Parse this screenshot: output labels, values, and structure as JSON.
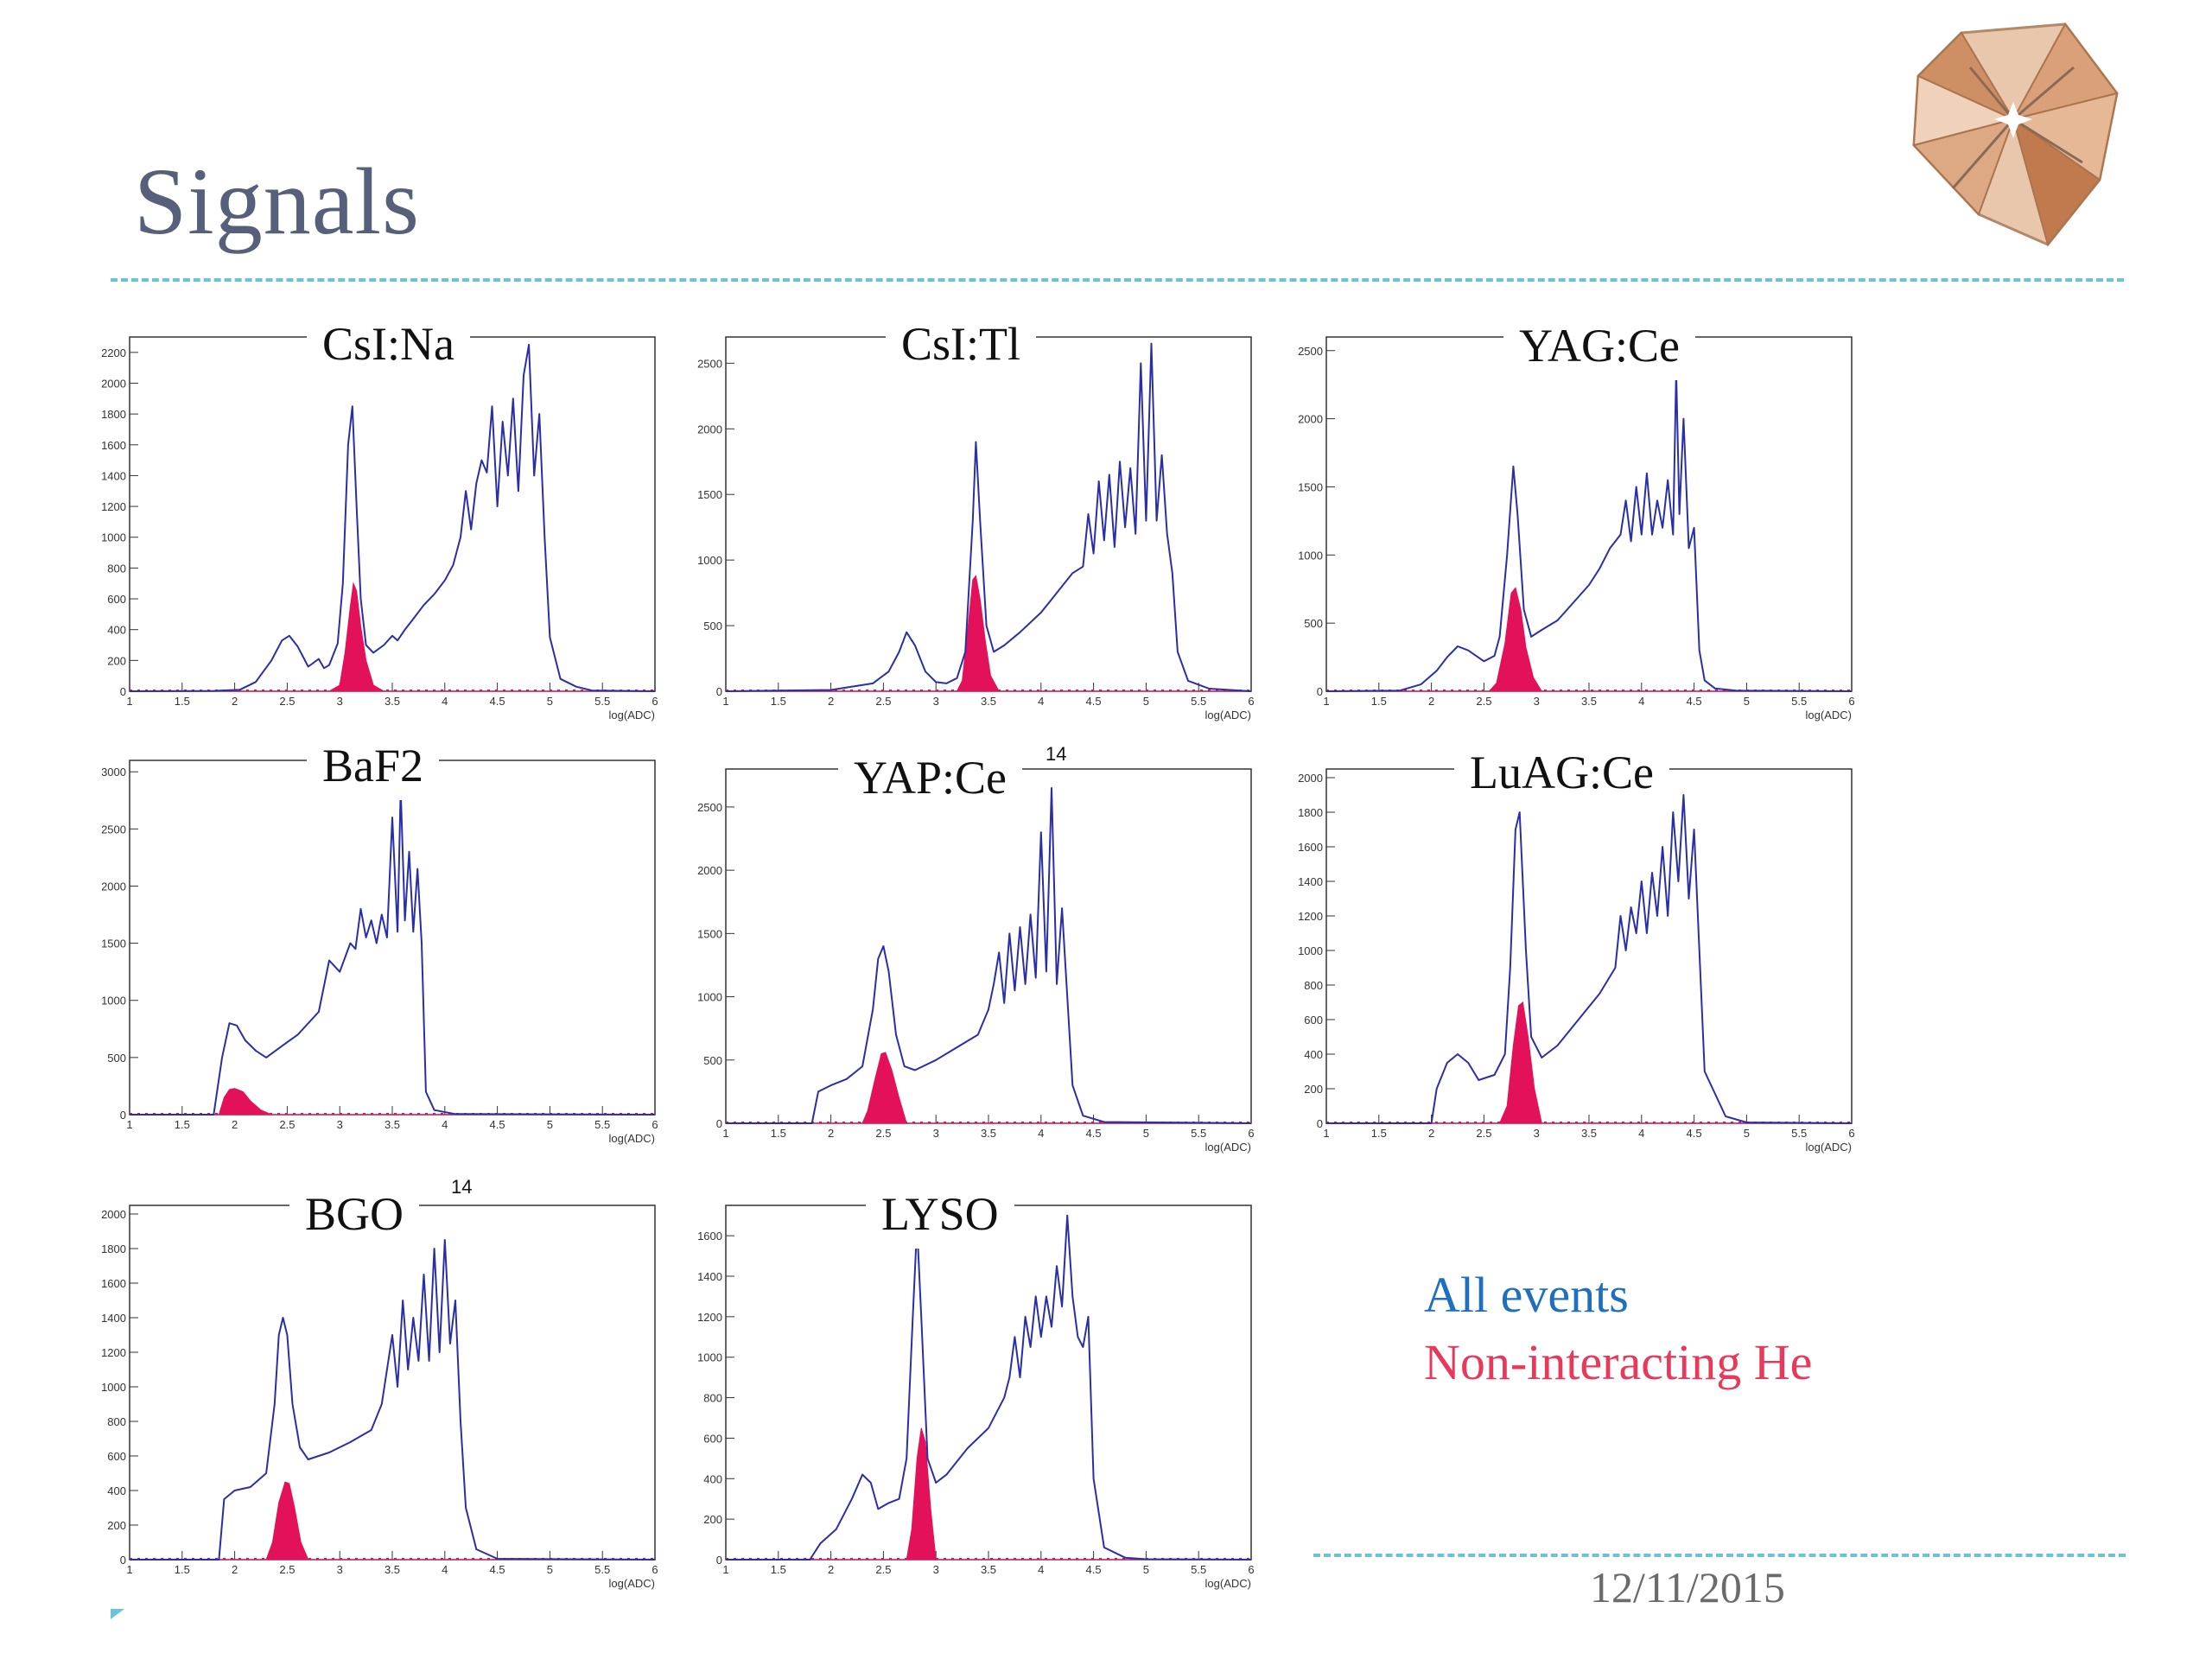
{
  "slide": {
    "title": "Signals",
    "date": "12/11/2015"
  },
  "legend": {
    "all_label": "All events",
    "he_label": "Non-interacting He",
    "all_color": "#1f6fbf",
    "he_color": "#e8395a"
  },
  "colors": {
    "line": "#2a2fa8",
    "fill": "#e3105a",
    "rule": "#6cc3d3"
  },
  "chart_data": [
    {
      "type": "area",
      "title": "CsI:Na",
      "xlabel": "log(ADC)",
      "xlim": [
        1,
        6
      ],
      "xticks": [
        1,
        1.5,
        2,
        2.5,
        3,
        3.5,
        4,
        4.5,
        5,
        5.5,
        6
      ],
      "ylim": [
        0,
        2300
      ],
      "yticks": [
        0,
        200,
        400,
        600,
        800,
        1000,
        1200,
        1400,
        1600,
        1800,
        2000,
        2200
      ],
      "series": [
        {
          "x": [
            1.0,
            1.8,
            2.05,
            2.2,
            2.35,
            2.45,
            2.52,
            2.6,
            2.7,
            2.8,
            2.85,
            2.9,
            2.98,
            3.03,
            3.08,
            3.12,
            3.16,
            3.2,
            3.25,
            3.32,
            3.42,
            3.5,
            3.55,
            3.62,
            3.7,
            3.8,
            3.9,
            4.0,
            4.08,
            4.15,
            4.2,
            4.25,
            4.3,
            4.35,
            4.4,
            4.45,
            4.5,
            4.55,
            4.6,
            4.65,
            4.7,
            4.75,
            4.8,
            4.85,
            4.9,
            4.95,
            5.0,
            5.1,
            5.25,
            5.4,
            6.0
          ],
          "y": [
            0,
            2,
            10,
            60,
            200,
            330,
            360,
            290,
            160,
            210,
            150,
            170,
            310,
            700,
            1600,
            1850,
            1200,
            600,
            300,
            250,
            300,
            360,
            330,
            400,
            470,
            560,
            630,
            720,
            820,
            1000,
            1300,
            1050,
            1350,
            1500,
            1420,
            1850,
            1200,
            1750,
            1400,
            1900,
            1300,
            2050,
            2250,
            1400,
            1800,
            1000,
            350,
            80,
            30,
            5,
            0
          ]
        },
        {
          "x": [
            1.0,
            2.9,
            3.0,
            3.05,
            3.1,
            3.13,
            3.16,
            3.2,
            3.25,
            3.32,
            3.42,
            6.0
          ],
          "y": [
            0,
            0,
            40,
            250,
            550,
            700,
            650,
            420,
            200,
            40,
            0,
            0
          ]
        }
      ]
    },
    {
      "type": "area",
      "title": "CsI:Tl",
      "xlabel": "log(ADC)",
      "xlim": [
        1,
        6
      ],
      "xticks": [
        1,
        1.5,
        2,
        2.5,
        3,
        3.5,
        4,
        4.5,
        5,
        5.5,
        6
      ],
      "ylim": [
        0,
        2700
      ],
      "yticks": [
        0,
        500,
        1000,
        1500,
        2000,
        2500
      ],
      "series": [
        {
          "x": [
            1.0,
            2.0,
            2.4,
            2.55,
            2.65,
            2.72,
            2.8,
            2.9,
            3.0,
            3.1,
            3.2,
            3.28,
            3.35,
            3.38,
            3.42,
            3.48,
            3.55,
            3.65,
            3.8,
            4.0,
            4.1,
            4.2,
            4.3,
            4.4,
            4.45,
            4.5,
            4.55,
            4.6,
            4.65,
            4.7,
            4.75,
            4.8,
            4.85,
            4.9,
            4.95,
            5.0,
            5.05,
            5.1,
            5.15,
            5.2,
            5.25,
            5.3,
            5.4,
            5.6,
            6.0
          ],
          "y": [
            0,
            10,
            60,
            150,
            300,
            450,
            350,
            150,
            70,
            60,
            100,
            300,
            1300,
            1900,
            1300,
            500,
            300,
            350,
            450,
            600,
            700,
            800,
            900,
            950,
            1350,
            1050,
            1600,
            1150,
            1650,
            1100,
            1750,
            1250,
            1700,
            1200,
            2500,
            1300,
            2650,
            1300,
            1800,
            1200,
            900,
            300,
            80,
            20,
            0
          ]
        },
        {
          "x": [
            1.0,
            3.2,
            3.25,
            3.3,
            3.35,
            3.38,
            3.42,
            3.47,
            3.52,
            3.6,
            6.0
          ],
          "y": [
            0,
            0,
            80,
            450,
            850,
            880,
            700,
            380,
            120,
            0,
            0
          ]
        }
      ]
    },
    {
      "type": "area",
      "title": "YAG:Ce",
      "xlabel": "log(ADC)",
      "xlim": [
        1,
        6
      ],
      "xticks": [
        1,
        1.5,
        2,
        2.5,
        3,
        3.5,
        4,
        4.5,
        5,
        5.5,
        6
      ],
      "ylim": [
        0,
        2600
      ],
      "yticks": [
        0,
        500,
        1000,
        1500,
        2000,
        2500
      ],
      "series": [
        {
          "x": [
            1.0,
            1.7,
            1.9,
            2.05,
            2.15,
            2.25,
            2.35,
            2.5,
            2.6,
            2.65,
            2.72,
            2.78,
            2.82,
            2.88,
            2.95,
            3.05,
            3.2,
            3.35,
            3.5,
            3.6,
            3.7,
            3.8,
            3.85,
            3.9,
            3.95,
            4.0,
            4.05,
            4.1,
            4.15,
            4.2,
            4.25,
            4.3,
            4.33,
            4.36,
            4.4,
            4.45,
            4.5,
            4.55,
            4.6,
            4.7,
            4.9,
            6.0
          ],
          "y": [
            0,
            5,
            50,
            150,
            250,
            330,
            300,
            220,
            260,
            400,
            1000,
            1650,
            1300,
            600,
            400,
            450,
            520,
            650,
            780,
            900,
            1050,
            1150,
            1400,
            1100,
            1500,
            1150,
            1600,
            1150,
            1400,
            1200,
            1550,
            1150,
            2350,
            1300,
            2000,
            1050,
            1200,
            300,
            80,
            20,
            5,
            0
          ]
        },
        {
          "x": [
            1.0,
            2.55,
            2.62,
            2.7,
            2.76,
            2.8,
            2.85,
            2.9,
            2.97,
            3.05,
            6.0
          ],
          "y": [
            0,
            0,
            60,
            350,
            720,
            760,
            600,
            320,
            100,
            0,
            0
          ]
        }
      ]
    },
    {
      "type": "area",
      "title": "BaF2",
      "xlabel": "log(ADC)",
      "xlim": [
        1,
        6
      ],
      "xticks": [
        1,
        1.5,
        2,
        2.5,
        3,
        3.5,
        4,
        4.5,
        5,
        5.5,
        6
      ],
      "ylim": [
        0,
        3100
      ],
      "yticks": [
        0,
        500,
        1000,
        1500,
        2000,
        2500,
        3000
      ],
      "series": [
        {
          "x": [
            1.0,
            1.8,
            1.88,
            1.95,
            2.02,
            2.1,
            2.2,
            2.3,
            2.45,
            2.6,
            2.8,
            2.9,
            3.0,
            3.1,
            3.15,
            3.2,
            3.25,
            3.3,
            3.35,
            3.4,
            3.45,
            3.5,
            3.55,
            3.58,
            3.62,
            3.66,
            3.7,
            3.74,
            3.78,
            3.82,
            3.9,
            4.1,
            6.0
          ],
          "y": [
            0,
            0,
            500,
            800,
            780,
            650,
            560,
            500,
            600,
            700,
            900,
            1350,
            1250,
            1500,
            1450,
            1800,
            1550,
            1700,
            1500,
            1750,
            1550,
            2600,
            1600,
            2850,
            1700,
            2300,
            1600,
            2150,
            1500,
            200,
            40,
            5,
            0
          ]
        },
        {
          "x": [
            1.0,
            1.85,
            1.9,
            1.95,
            2.0,
            2.08,
            2.15,
            2.25,
            2.35,
            6.0
          ],
          "y": [
            0,
            0,
            150,
            220,
            230,
            200,
            120,
            40,
            0,
            0
          ]
        }
      ]
    },
    {
      "type": "area",
      "title": "YAP:Ce",
      "xlabel": "log(ADC)",
      "xlim": [
        1,
        6
      ],
      "xticks": [
        1,
        1.5,
        2,
        2.5,
        3,
        3.5,
        4,
        4.5,
        5,
        5.5,
        6
      ],
      "ylim": [
        0,
        2800
      ],
      "yticks": [
        0,
        500,
        1000,
        1500,
        2000,
        2500
      ],
      "series": [
        {
          "x": [
            1.0,
            1.82,
            1.88,
            2.0,
            2.15,
            2.3,
            2.4,
            2.45,
            2.5,
            2.55,
            2.62,
            2.7,
            2.8,
            3.0,
            3.2,
            3.4,
            3.5,
            3.55,
            3.6,
            3.65,
            3.7,
            3.75,
            3.8,
            3.85,
            3.9,
            3.95,
            4.0,
            4.05,
            4.1,
            4.15,
            4.2,
            4.25,
            4.3,
            4.4,
            4.6,
            6.0
          ],
          "y": [
            0,
            0,
            250,
            300,
            350,
            450,
            900,
            1300,
            1400,
            1200,
            700,
            450,
            420,
            500,
            600,
            700,
            900,
            1100,
            1350,
            950,
            1500,
            1050,
            1550,
            1100,
            1650,
            1150,
            2300,
            1200,
            2650,
            1100,
            1700,
            1000,
            300,
            60,
            10,
            0
          ]
        },
        {
          "x": [
            1.0,
            2.3,
            2.35,
            2.42,
            2.48,
            2.52,
            2.58,
            2.65,
            2.72,
            6.0
          ],
          "y": [
            0,
            0,
            100,
            350,
            550,
            560,
            420,
            200,
            0,
            0
          ]
        }
      ]
    },
    {
      "type": "area",
      "title": "LuAG:Ce",
      "xlabel": "log(ADC)",
      "xlim": [
        1,
        6
      ],
      "xticks": [
        1,
        1.5,
        2,
        2.5,
        3,
        3.5,
        4,
        4.5,
        5,
        5.5,
        6
      ],
      "ylim": [
        0,
        2050
      ],
      "yticks": [
        0,
        200,
        400,
        600,
        800,
        1000,
        1200,
        1400,
        1600,
        1800,
        2000
      ],
      "series": [
        {
          "x": [
            1.0,
            2.0,
            2.05,
            2.15,
            2.25,
            2.35,
            2.45,
            2.6,
            2.7,
            2.75,
            2.8,
            2.84,
            2.9,
            2.95,
            3.05,
            3.2,
            3.4,
            3.6,
            3.75,
            3.8,
            3.85,
            3.9,
            3.95,
            4.0,
            4.05,
            4.1,
            4.15,
            4.2,
            4.25,
            4.3,
            4.35,
            4.4,
            4.45,
            4.5,
            4.6,
            4.8,
            5.0,
            6.0
          ],
          "y": [
            0,
            0,
            200,
            350,
            400,
            350,
            250,
            280,
            400,
            900,
            1700,
            1800,
            1000,
            500,
            380,
            450,
            600,
            750,
            900,
            1200,
            1000,
            1250,
            1100,
            1400,
            1100,
            1450,
            1200,
            1600,
            1200,
            1800,
            1400,
            1900,
            1300,
            1700,
            300,
            40,
            5,
            0
          ]
        },
        {
          "x": [
            1.0,
            2.65,
            2.72,
            2.78,
            2.83,
            2.87,
            2.92,
            2.98,
            3.05,
            6.0
          ],
          "y": [
            0,
            0,
            100,
            450,
            680,
            700,
            500,
            200,
            0,
            0
          ]
        }
      ]
    },
    {
      "type": "area",
      "title": "BGO",
      "xlabel": "log(ADC)",
      "xlim": [
        1,
        6
      ],
      "xticks": [
        1,
        1.5,
        2,
        2.5,
        3,
        3.5,
        4,
        4.5,
        5,
        5.5,
        6
      ],
      "ylim": [
        0,
        2050
      ],
      "yticks": [
        0,
        200,
        400,
        600,
        800,
        1000,
        1200,
        1400,
        1600,
        1800,
        2000
      ],
      "series": [
        {
          "x": [
            1.0,
            1.85,
            1.9,
            2.0,
            2.15,
            2.3,
            2.38,
            2.42,
            2.46,
            2.5,
            2.55,
            2.62,
            2.7,
            2.9,
            3.1,
            3.3,
            3.4,
            3.45,
            3.5,
            3.55,
            3.6,
            3.65,
            3.7,
            3.75,
            3.8,
            3.85,
            3.9,
            3.95,
            4.0,
            4.05,
            4.1,
            4.15,
            4.2,
            4.3,
            4.5,
            6.0
          ],
          "y": [
            0,
            0,
            350,
            400,
            420,
            500,
            900,
            1300,
            1400,
            1300,
            900,
            650,
            580,
            620,
            680,
            750,
            900,
            1100,
            1300,
            1000,
            1500,
            1100,
            1400,
            1150,
            1650,
            1150,
            1800,
            1200,
            1850,
            1250,
            1500,
            800,
            300,
            60,
            5,
            0
          ]
        },
        {
          "x": [
            1.0,
            2.3,
            2.36,
            2.42,
            2.48,
            2.52,
            2.57,
            2.63,
            2.7,
            6.0
          ],
          "y": [
            0,
            0,
            100,
            330,
            450,
            440,
            300,
            100,
            0,
            0
          ]
        }
      ]
    },
    {
      "type": "area",
      "title": "LYSO",
      "xlabel": "log(ADC)",
      "xlim": [
        1,
        6
      ],
      "xticks": [
        1,
        1.5,
        2,
        2.5,
        3,
        3.5,
        4,
        4.5,
        5,
        5.5,
        6
      ],
      "ylim": [
        0,
        1750
      ],
      "yticks": [
        0,
        200,
        400,
        600,
        800,
        1000,
        1200,
        1400,
        1600
      ],
      "series": [
        {
          "x": [
            1.0,
            1.8,
            1.9,
            2.05,
            2.2,
            2.3,
            2.38,
            2.45,
            2.55,
            2.65,
            2.72,
            2.78,
            2.82,
            2.86,
            2.92,
            3.0,
            3.1,
            3.3,
            3.5,
            3.65,
            3.7,
            3.75,
            3.8,
            3.85,
            3.9,
            3.95,
            4.0,
            4.05,
            4.1,
            4.15,
            4.2,
            4.25,
            4.3,
            4.35,
            4.4,
            4.45,
            4.5,
            4.6,
            4.8,
            5.0,
            6.0
          ],
          "y": [
            0,
            0,
            80,
            150,
            300,
            420,
            380,
            250,
            280,
            300,
            500,
            1200,
            1650,
            1200,
            500,
            380,
            420,
            550,
            650,
            800,
            900,
            1100,
            900,
            1200,
            1050,
            1300,
            1100,
            1300,
            1150,
            1450,
            1250,
            1700,
            1300,
            1100,
            1050,
            1200,
            400,
            60,
            10,
            2,
            0
          ]
        },
        {
          "x": [
            1.0,
            2.72,
            2.77,
            2.82,
            2.86,
            2.9,
            2.95,
            3.0,
            6.0
          ],
          "y": [
            0,
            0,
            150,
            500,
            650,
            580,
            250,
            0,
            0
          ]
        }
      ]
    }
  ]
}
